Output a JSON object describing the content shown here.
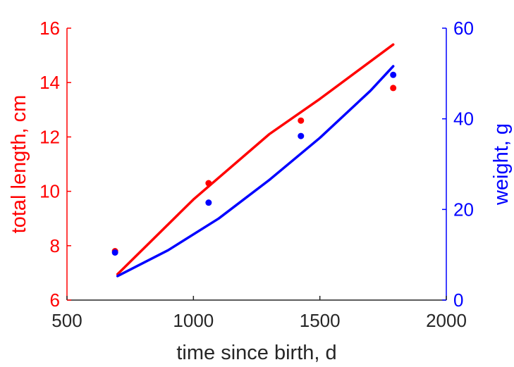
{
  "chart_data": {
    "type": "scatter",
    "xlabel": "time since birth, d",
    "ylabel_left": "total length, cm",
    "ylabel_right": "weight, g",
    "xlim": [
      500,
      2000
    ],
    "ylim_left": [
      6,
      16
    ],
    "ylim_right": [
      0,
      60
    ],
    "xticks": [
      "500",
      "1000",
      "1500",
      "2000"
    ],
    "yticks_left": [
      "6",
      "8",
      "10",
      "12",
      "14",
      "16"
    ],
    "yticks_right": [
      "0",
      "20",
      "40",
      "60"
    ],
    "grid": false,
    "colors": {
      "left": "#ff0000",
      "right": "#0000ff",
      "axis": "#262626"
    },
    "series": [
      {
        "axis": "left",
        "points_x": [
          690,
          1060,
          1425,
          1790
        ],
        "points_y": [
          7.8,
          10.3,
          12.6,
          13.8
        ],
        "curve_x": [
          700,
          1000,
          1300,
          1500,
          1790
        ],
        "curve_y": [
          6.95,
          9.7,
          12.1,
          13.4,
          15.4
        ]
      },
      {
        "axis": "right",
        "points_x": [
          690,
          1060,
          1425,
          1790
        ],
        "points_y": [
          10.5,
          21.5,
          36.2,
          49.7
        ],
        "curve_x": [
          700,
          900,
          1100,
          1300,
          1500,
          1700,
          1790
        ],
        "curve_y": [
          5.3,
          11.0,
          18.0,
          26.5,
          35.8,
          46.2,
          51.6
        ]
      }
    ]
  }
}
